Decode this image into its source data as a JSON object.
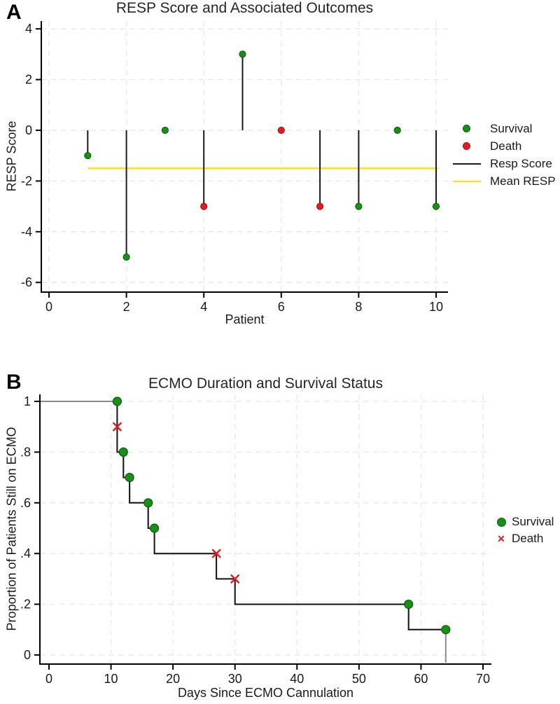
{
  "panels": [
    {
      "label": "A"
    },
    {
      "label": "B"
    }
  ],
  "colors": {
    "survival": "#189018",
    "survival_edge": "#0b5e0b",
    "death": "#e8191f",
    "death_edge": "#a5121a",
    "resp_score_line": "#1a1a1a",
    "mean_resp_line": "#ffdf0a",
    "km_curve_gray": "#8a8a8a",
    "km_overlay_black": "#1a1a1a",
    "grid": "#e8e8e8",
    "axis": "#000000",
    "text": "#1a1a1a"
  },
  "chart_data": [
    {
      "type": "scatter",
      "panel": "A",
      "title": "RESP Score and Associated Outcomes",
      "xlabel": "Patient",
      "ylabel": "RESP Score",
      "xlim": [
        0,
        10.5
      ],
      "ylim": [
        -6.5,
        4.4
      ],
      "xticks": [
        0,
        2,
        4,
        6,
        8,
        10
      ],
      "yticks": [
        4,
        2,
        0,
        -2,
        -4,
        -6
      ],
      "ytick_labels": [
        "4",
        "2",
        "0",
        "-2",
        "-4",
        "-6"
      ],
      "grid": true,
      "legend_position": "right",
      "mean_resp": -1.5,
      "mean_line_span": [
        1,
        10.05
      ],
      "points": [
        {
          "patient": 1,
          "resp_score": -1,
          "outcome": "Survival"
        },
        {
          "patient": 2,
          "resp_score": -5,
          "outcome": "Survival"
        },
        {
          "patient": 3,
          "resp_score": 0,
          "outcome": "Survival"
        },
        {
          "patient": 4,
          "resp_score": -3,
          "outcome": "Death"
        },
        {
          "patient": 5,
          "resp_score": 3,
          "outcome": "Survival"
        },
        {
          "patient": 6,
          "resp_score": 0,
          "outcome": "Death"
        },
        {
          "patient": 7,
          "resp_score": -3,
          "outcome": "Death"
        },
        {
          "patient": 8,
          "resp_score": -3,
          "outcome": "Survival"
        },
        {
          "patient": 9,
          "resp_score": 0,
          "outcome": "Survival"
        },
        {
          "patient": 10,
          "resp_score": -3,
          "outcome": "Survival"
        }
      ],
      "legend": [
        {
          "label": "Survival",
          "marker": "dot",
          "color": "#189018"
        },
        {
          "label": "Death",
          "marker": "dot",
          "color": "#e8191f"
        },
        {
          "label": "Resp Score",
          "marker": "line",
          "color": "#1a1a1a"
        },
        {
          "label": "Mean RESP",
          "marker": "line",
          "color": "#ffdf0a"
        }
      ]
    },
    {
      "type": "step",
      "panel": "B",
      "title": "ECMO Duration and Survival Status",
      "xlabel": "Days Since ECMO Cannulation",
      "ylabel": "Proportion of Patients Still on ECMO",
      "xlim": [
        0,
        71
      ],
      "ylim": [
        0,
        1.03
      ],
      "xticks": [
        0,
        10,
        20,
        30,
        40,
        50,
        60,
        70
      ],
      "yticks": [
        1,
        0.8,
        0.6,
        0.4,
        0.2,
        0
      ],
      "ytick_labels": [
        "1",
        ".8",
        ".6",
        ".4",
        ".2",
        "0"
      ],
      "grid": true,
      "legend_position": "right",
      "curve": [
        [
          0,
          1
        ],
        [
          11,
          1
        ],
        [
          11,
          0.8
        ],
        [
          12,
          0.8
        ],
        [
          12,
          0.7
        ],
        [
          13,
          0.7
        ],
        [
          13,
          0.6
        ],
        [
          16,
          0.6
        ],
        [
          16,
          0.5
        ],
        [
          17,
          0.5
        ],
        [
          17,
          0.4
        ],
        [
          27,
          0.4
        ],
        [
          27,
          0.3
        ],
        [
          30,
          0.3
        ],
        [
          30,
          0.2
        ],
        [
          58,
          0.2
        ],
        [
          58,
          0.1
        ],
        [
          64,
          0.1
        ],
        [
          64,
          0
        ]
      ],
      "markers": [
        {
          "day": 11,
          "proportion": 1.0,
          "outcome": "Survival"
        },
        {
          "day": 11,
          "proportion": 0.9,
          "outcome": "Death"
        },
        {
          "day": 12,
          "proportion": 0.8,
          "outcome": "Survival"
        },
        {
          "day": 13,
          "proportion": 0.7,
          "outcome": "Survival"
        },
        {
          "day": 16,
          "proportion": 0.6,
          "outcome": "Survival"
        },
        {
          "day": 17,
          "proportion": 0.5,
          "outcome": "Survival"
        },
        {
          "day": 27,
          "proportion": 0.4,
          "outcome": "Death"
        },
        {
          "day": 30,
          "proportion": 0.3,
          "outcome": "Death"
        },
        {
          "day": 58,
          "proportion": 0.2,
          "outcome": "Survival"
        },
        {
          "day": 64,
          "proportion": 0.1,
          "outcome": "Survival"
        }
      ],
      "legend": [
        {
          "label": "Survival",
          "marker": "dot",
          "color": "#189018"
        },
        {
          "label": "Death",
          "marker": "x",
          "color": "#e8191f"
        }
      ]
    }
  ]
}
